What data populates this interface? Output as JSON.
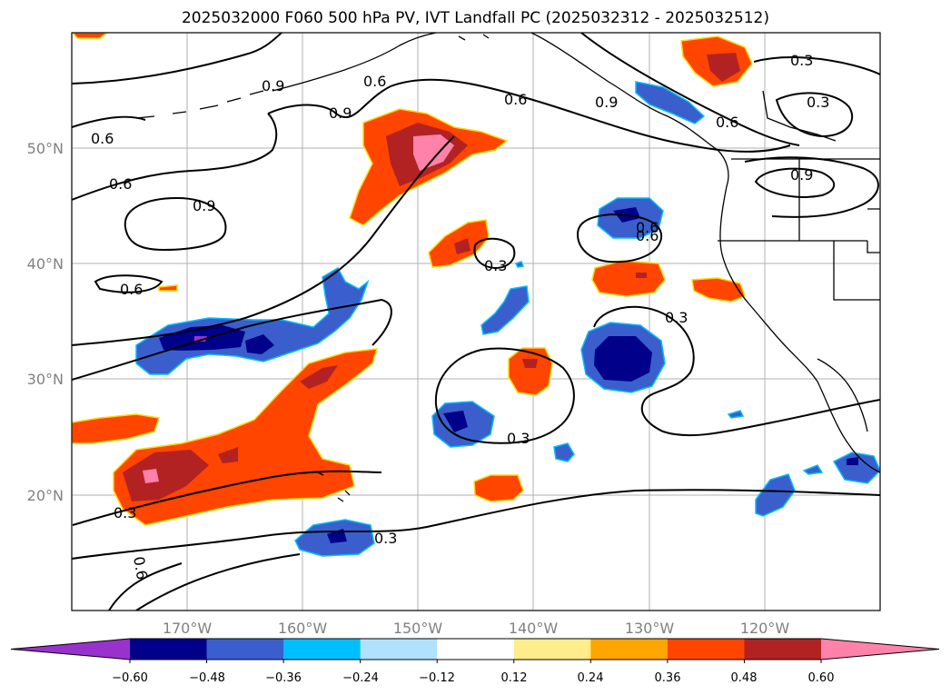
{
  "title": "2025032000 F060 500 hPa PV, IVT Landfall PC (2025032312 - 2025032512)",
  "map": {
    "projection": "PlateCarree",
    "lon_range": [
      180,
      -110
    ],
    "lat_range": [
      10,
      60
    ],
    "lon_ticks": [
      "170°W",
      "160°W",
      "150°W",
      "140°W",
      "130°W",
      "120°W"
    ],
    "lat_ticks": [
      "50°N",
      "40°N",
      "30°N",
      "20°N"
    ],
    "gridlines": true,
    "coastline_color": "#000000",
    "filled_field": "500 hPa PV IVT Landfall PC",
    "contour_field_levels": [
      0.3,
      0.6,
      0.9
    ]
  },
  "contour_labels": [
    "0.9",
    "0.6",
    "0.6",
    "0.9",
    "0.6",
    "0.6",
    "0.9",
    "0.6",
    "0.9",
    "0.6",
    "0.3",
    "0.3",
    "0.9",
    "0.3",
    "0.6",
    "0.6",
    "0.3",
    "0.3",
    "0.3",
    "0.3",
    "0.6"
  ],
  "colorbar": {
    "extend": "both",
    "colors": [
      "#9932cc",
      "#00008b",
      "#3a5fcd",
      "#00bfff",
      "#b0e2ff",
      "#ffffff",
      "#ffec8b",
      "#ffa500",
      "#ff4500",
      "#b22222",
      "#ff82ab"
    ],
    "tick_labels": [
      "−0.60",
      "−0.48",
      "−0.36",
      "−0.24",
      "−0.12",
      "0.12",
      "0.24",
      "0.36",
      "0.48",
      "0.60"
    ]
  }
}
